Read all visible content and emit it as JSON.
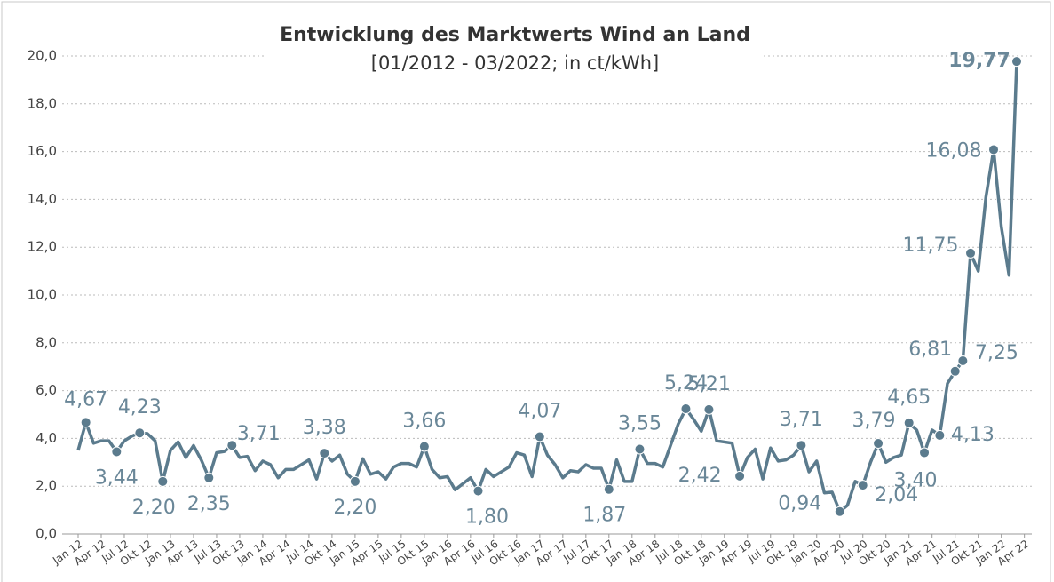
{
  "chart_data": {
    "type": "line",
    "title": "Entwicklung des Marktwerts Wind an Land",
    "subtitle": "[01/2012 - 03/2022; in ct/kWh]",
    "categories": [
      "Jan 12",
      null,
      null,
      "Apr 12",
      null,
      null,
      "Jul 12",
      null,
      null,
      "Okt 12",
      null,
      null,
      "Jan 13",
      null,
      null,
      "Apr 13",
      null,
      null,
      "Jul 13",
      null,
      null,
      "Okt 13",
      null,
      null,
      "Jan 14",
      null,
      null,
      "Apr 14",
      null,
      null,
      "Jul 14",
      null,
      null,
      "Okt 14",
      null,
      null,
      "Jan 15",
      null,
      null,
      "Apr 15",
      null,
      null,
      "Jul 15",
      null,
      null,
      "Okt 15",
      null,
      null,
      "Jan 16",
      null,
      null,
      "Apr 16",
      null,
      null,
      "Jul 16",
      null,
      null,
      "Okt 16",
      null,
      null,
      "Jan 17",
      null,
      null,
      "Apr 17",
      null,
      null,
      "Jul 17",
      null,
      null,
      "Okt 17",
      null,
      null,
      "Jan 18",
      null,
      null,
      "Apr 18",
      null,
      null,
      "Jul 18",
      null,
      null,
      "Okt 18",
      null,
      null,
      "Jan 19",
      null,
      null,
      "Apr 19",
      null,
      null,
      "Jul 19",
      null,
      null,
      "Okt 19",
      null,
      null,
      "Jan 20",
      null,
      null,
      "Apr 20",
      null,
      null,
      "Jul 20",
      null,
      null,
      "Okt 20",
      null,
      null,
      "Jan 21",
      null,
      null,
      "Apr 21",
      null,
      null,
      "Jul 21",
      null,
      null,
      "Okt 21",
      null,
      null,
      "Jan 22",
      null,
      null,
      "Apr 22"
    ],
    "series": [
      {
        "color": "#5b7b8d",
        "values": [
          3.5,
          4.67,
          3.8,
          3.9,
          3.9,
          3.44,
          3.9,
          4.1,
          4.23,
          4.2,
          3.9,
          2.2,
          3.5,
          3.85,
          3.2,
          3.7,
          3.1,
          2.35,
          3.4,
          3.45,
          3.71,
          3.2,
          3.25,
          2.65,
          3.05,
          2.9,
          2.35,
          2.7,
          2.7,
          2.9,
          3.1,
          2.3,
          3.38,
          3.05,
          3.3,
          2.5,
          2.2,
          3.15,
          2.5,
          2.6,
          2.3,
          2.8,
          2.95,
          2.95,
          2.8,
          3.66,
          2.7,
          2.35,
          2.4,
          1.85,
          2.1,
          2.35,
          1.8,
          2.7,
          2.4,
          2.6,
          2.8,
          3.4,
          3.3,
          2.4,
          4.07,
          3.3,
          2.9,
          2.35,
          2.65,
          2.6,
          2.9,
          2.75,
          2.75,
          1.87,
          3.1,
          2.2,
          2.2,
          3.55,
          2.95,
          2.95,
          2.8,
          3.7,
          4.6,
          5.24,
          4.8,
          4.3,
          5.21,
          3.9,
          3.85,
          3.8,
          2.42,
          3.2,
          3.55,
          2.3,
          3.6,
          3.05,
          3.1,
          3.3,
          3.71,
          2.6,
          3.05,
          1.72,
          1.75,
          0.94,
          1.2,
          2.2,
          2.04,
          3.0,
          3.79,
          3.0,
          3.2,
          3.3,
          4.65,
          4.35,
          3.4,
          4.35,
          4.13,
          6.3,
          6.81,
          7.25,
          11.75,
          11.0,
          14.1,
          16.08,
          12.85,
          10.83,
          19.77,
          null
        ],
        "value_labels": [
          null,
          "4,67",
          null,
          null,
          null,
          "3,44",
          null,
          null,
          "4,23",
          null,
          null,
          "2,20",
          null,
          null,
          null,
          null,
          null,
          "2,35",
          null,
          null,
          "3,71",
          null,
          null,
          null,
          null,
          null,
          null,
          null,
          null,
          null,
          null,
          null,
          "3,38",
          null,
          null,
          null,
          "2,20",
          null,
          null,
          null,
          null,
          null,
          null,
          null,
          null,
          "3,66",
          null,
          null,
          null,
          null,
          null,
          null,
          "1,80",
          null,
          null,
          null,
          null,
          null,
          null,
          null,
          "4,07",
          null,
          null,
          null,
          null,
          null,
          null,
          null,
          null,
          "1,87",
          null,
          null,
          null,
          "3,55",
          null,
          null,
          null,
          null,
          null,
          "5,24",
          null,
          null,
          "5,21",
          null,
          null,
          null,
          "2,42",
          null,
          null,
          null,
          null,
          null,
          null,
          null,
          "3,71",
          null,
          null,
          null,
          null,
          "0,94",
          null,
          null,
          "2,04",
          null,
          "3,79",
          null,
          null,
          null,
          "4,65",
          null,
          "3,40",
          null,
          "4,13",
          null,
          "6,81",
          "7,25",
          "11,75",
          null,
          null,
          "16,08",
          null,
          null,
          "19,77",
          null
        ]
      }
    ],
    "ylim": [
      0,
      20
    ],
    "yticks": [
      {
        "value": 0,
        "label": "0,0"
      },
      {
        "value": 2,
        "label": "2,0"
      },
      {
        "value": 4,
        "label": "4,0"
      },
      {
        "value": 6,
        "label": "6,0"
      },
      {
        "value": 8,
        "label": "8,0"
      },
      {
        "value": 10,
        "label": "10,0"
      },
      {
        "value": 12,
        "label": "12,0"
      },
      {
        "value": 14,
        "label": "14,0"
      },
      {
        "value": 16,
        "label": "16,0"
      },
      {
        "value": 18,
        "label": "18,0"
      },
      {
        "value": 20,
        "label": "20,0"
      }
    ],
    "grid": true
  }
}
